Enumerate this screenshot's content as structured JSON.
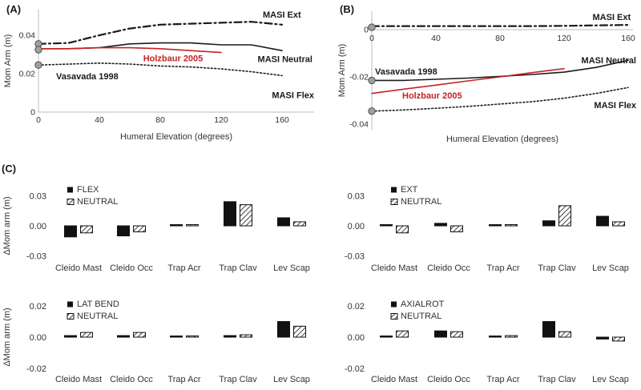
{
  "panels": {
    "a": {
      "label": "(A)"
    },
    "b": {
      "label": "(B)"
    },
    "c": {
      "label": "(C)"
    }
  },
  "colors": {
    "line_black": "#1a1a1a",
    "line_red": "#c42323",
    "axis_gray": "#bdbdbd",
    "tick_text": "#333333",
    "marker_fill": "#a0a0a0",
    "marker_stroke": "#4d4d4d",
    "bar_black": "#111111"
  },
  "chart_data": [
    {
      "id": "A",
      "type": "line",
      "xlabel": "Humeral Elevation (degrees)",
      "ylabel": "Mom Arm (m)",
      "xlim": [
        0,
        160
      ],
      "ylim": [
        0,
        0.053
      ],
      "x_ticks": [
        {
          "v": 0,
          "label": "0"
        },
        {
          "v": 40,
          "label": "40"
        },
        {
          "v": 80,
          "label": "80"
        },
        {
          "v": 120,
          "label": "120"
        },
        {
          "v": 160,
          "label": "160"
        }
      ],
      "y_ticks": [
        {
          "v": 0,
          "label": "0"
        },
        {
          "v": 0.02,
          "label": "0.02"
        },
        {
          "v": 0.04,
          "label": "0.04"
        }
      ],
      "x": [
        0,
        20,
        40,
        60,
        80,
        100,
        120,
        140,
        160
      ],
      "series": [
        {
          "name": "MASI Ext",
          "style": "dashdot",
          "color": "#1a1a1a",
          "width": 2.2,
          "values": [
            0.0355,
            0.036,
            0.04,
            0.0435,
            0.0455,
            0.046,
            0.0465,
            0.047,
            0.0455
          ]
        },
        {
          "name": "MASI Neutral",
          "style": "solid",
          "color": "#1a1a1a",
          "width": 1.6,
          "values": [
            0.033,
            0.033,
            0.0335,
            0.0355,
            0.036,
            0.036,
            0.035,
            0.035,
            0.032
          ]
        },
        {
          "name": "Holzbaur 2005",
          "style": "solid",
          "color": "#c42323",
          "width": 1.6,
          "x": [
            0,
            20,
            40,
            60,
            80,
            100,
            120
          ],
          "values": [
            0.033,
            0.033,
            0.0335,
            0.0335,
            0.033,
            0.032,
            0.031
          ]
        },
        {
          "name": "MASI Flex",
          "style": "dotted",
          "color": "#1a1a1a",
          "width": 1.6,
          "values": [
            0.0245,
            0.025,
            0.0255,
            0.025,
            0.024,
            0.0235,
            0.0225,
            0.021,
            0.019
          ]
        }
      ],
      "start_markers": [
        0.0355,
        0.0325,
        0.0245
      ],
      "annotations": [
        {
          "text": "MASI Ext",
          "fx": 0.82,
          "fy": 0.113,
          "anchor": "start",
          "color": "#1a1a1a"
        },
        {
          "text": "MASI Neutral",
          "fx": 0.975,
          "fy": 0.398,
          "anchor": "end",
          "color": "#1a1a1a"
        },
        {
          "text": "Holzbaur 2005",
          "fx": 0.54,
          "fy": 0.392,
          "anchor": "middle",
          "color": "#c42323"
        },
        {
          "text": "Vasavada 1998",
          "fx": 0.175,
          "fy": 0.508,
          "anchor": "start",
          "color": "#1a1a1a"
        },
        {
          "text": "MASI Flex",
          "fx": 0.98,
          "fy": 0.628,
          "anchor": "end",
          "color": "#1a1a1a"
        }
      ]
    },
    {
      "id": "B",
      "type": "line",
      "xlabel": "Humeral Elevation (degrees)",
      "ylabel": "Mom Arm (m)",
      "xlim": [
        0,
        160
      ],
      "ylim": [
        -0.042,
        0.008
      ],
      "x_ticks": [
        {
          "v": 0,
          "label": "0"
        },
        {
          "v": 40,
          "label": "40"
        },
        {
          "v": 80,
          "label": "80"
        },
        {
          "v": 120,
          "label": "120"
        },
        {
          "v": 160,
          "label": "160"
        }
      ],
      "y_ticks": [
        {
          "v": 0,
          "label": "0"
        },
        {
          "v": -0.02,
          "label": "-0.02"
        },
        {
          "v": -0.04,
          "label": "-0.04"
        }
      ],
      "x": [
        0,
        20,
        40,
        60,
        80,
        100,
        120,
        140,
        160
      ],
      "series": [
        {
          "name": "MASI Ext",
          "style": "dashdot",
          "color": "#1a1a1a",
          "width": 2.2,
          "values": [
            0.0015,
            0.0015,
            0.0015,
            0.0015,
            0.0015,
            0.0015,
            0.0016,
            0.0018,
            0.002
          ]
        },
        {
          "name": "MASI Neutral",
          "style": "solid",
          "color": "#1a1a1a",
          "width": 1.6,
          "values": [
            -0.0215,
            -0.0215,
            -0.021,
            -0.0205,
            -0.0198,
            -0.019,
            -0.018,
            -0.016,
            -0.013
          ]
        },
        {
          "name": "Holzbaur 2005",
          "style": "solid",
          "color": "#c42323",
          "width": 1.6,
          "x": [
            0,
            20,
            40,
            60,
            80,
            100,
            120
          ],
          "values": [
            -0.027,
            -0.0252,
            -0.0235,
            -0.0217,
            -0.02,
            -0.0182,
            -0.0165
          ]
        },
        {
          "name": "MASI Flex",
          "style": "dotted",
          "color": "#1a1a1a",
          "width": 1.6,
          "values": [
            -0.0345,
            -0.034,
            -0.0333,
            -0.0325,
            -0.0315,
            -0.0305,
            -0.029,
            -0.027,
            -0.0245
          ]
        }
      ],
      "start_markers": [
        0.001,
        -0.0215,
        -0.0345
      ],
      "annotations": [
        {
          "text": "MASI Ext",
          "fx": 0.968,
          "fy": 0.128,
          "anchor": "end",
          "color": "#1a1a1a"
        },
        {
          "text": "MASI Neutral",
          "fx": 0.985,
          "fy": 0.405,
          "anchor": "end",
          "color": "#1a1a1a"
        },
        {
          "text": "Vasavada 1998",
          "fx": 0.17,
          "fy": 0.477,
          "anchor": "start",
          "color": "#1a1a1a"
        },
        {
          "text": "Holzbaur 2005",
          "fx": 0.255,
          "fy": 0.632,
          "anchor": "start",
          "color": "#c42323"
        },
        {
          "text": "MASI Flex",
          "fx": 0.985,
          "fy": 0.692,
          "anchor": "end",
          "color": "#1a1a1a"
        }
      ]
    },
    {
      "id": "C1",
      "type": "bar",
      "ylabel": "ΔMom arm (m)",
      "ylim": [
        -0.035,
        0.035
      ],
      "y_ticks": [
        {
          "v": 0.03,
          "label": "0.03"
        },
        {
          "v": 0,
          "label": "0.00"
        },
        {
          "v": -0.03,
          "label": "-0.03"
        }
      ],
      "categories": [
        "Cleido Mast",
        "Cleido Occ",
        "Trap Acr",
        "Trap Clav",
        "Lev Scap"
      ],
      "series": [
        {
          "name": "FLEX",
          "fill": "solid",
          "values": [
            -0.011,
            -0.01,
            0.0005,
            0.024,
            0.008
          ]
        },
        {
          "name": "NEUTRAL",
          "fill": "hatch",
          "values": [
            -0.007,
            -0.006,
            0.001,
            0.021,
            0.004
          ]
        }
      ]
    },
    {
      "id": "C2",
      "type": "bar",
      "ylabel": "",
      "ylim": [
        -0.035,
        0.035
      ],
      "y_ticks": [
        {
          "v": 0.03,
          "label": "0.03"
        },
        {
          "v": 0,
          "label": "0.00"
        },
        {
          "v": -0.03,
          "label": "-0.03"
        }
      ],
      "categories": [
        "Cleido Mast",
        "Cleido Occ",
        "Trap Acr",
        "Trap Clav",
        "Lev Scap"
      ],
      "series": [
        {
          "name": "EXT",
          "fill": "solid",
          "values": [
            0.0008,
            0.0025,
            0.0004,
            0.005,
            0.0095
          ]
        },
        {
          "name": "NEUTRAL",
          "fill": "hatch",
          "values": [
            -0.007,
            -0.006,
            0.001,
            0.02,
            0.004
          ]
        }
      ]
    },
    {
      "id": "C3",
      "type": "bar",
      "ylabel": "ΔMom arm (m)",
      "ylim": [
        -0.023,
        0.023
      ],
      "y_ticks": [
        {
          "v": 0.02,
          "label": "0.02"
        },
        {
          "v": 0,
          "label": "0.00"
        },
        {
          "v": -0.02,
          "label": "-0.02"
        }
      ],
      "categories": [
        "Cleido Mast",
        "Cleido Occ",
        "Trap Acr",
        "Trap Clav",
        "Lev Scap"
      ],
      "series": [
        {
          "name": "LAT BEND",
          "fill": "solid",
          "values": [
            0.001,
            0.001,
            0.0004,
            0.001,
            0.01
          ]
        },
        {
          "name": "NEUTRAL",
          "fill": "hatch",
          "values": [
            0.003,
            0.003,
            0.0008,
            0.0015,
            0.007
          ]
        }
      ]
    },
    {
      "id": "C4",
      "type": "bar",
      "ylabel": "",
      "ylim": [
        -0.023,
        0.023
      ],
      "y_ticks": [
        {
          "v": 0.02,
          "label": "0.02"
        },
        {
          "v": 0,
          "label": "0.00"
        },
        {
          "v": -0.02,
          "label": "-0.02"
        }
      ],
      "categories": [
        "Cleido Mast",
        "Cleido Occ",
        "Trap Acr",
        "Trap Clav",
        "Lev Scap"
      ],
      "series": [
        {
          "name": "AXIALROT",
          "fill": "solid",
          "values": [
            0.0002,
            0.004,
            0.0004,
            0.01,
            -0.0012
          ]
        },
        {
          "name": "NEUTRAL",
          "fill": "hatch",
          "values": [
            0.004,
            0.0035,
            0.001,
            0.0035,
            -0.0025
          ]
        }
      ]
    }
  ]
}
